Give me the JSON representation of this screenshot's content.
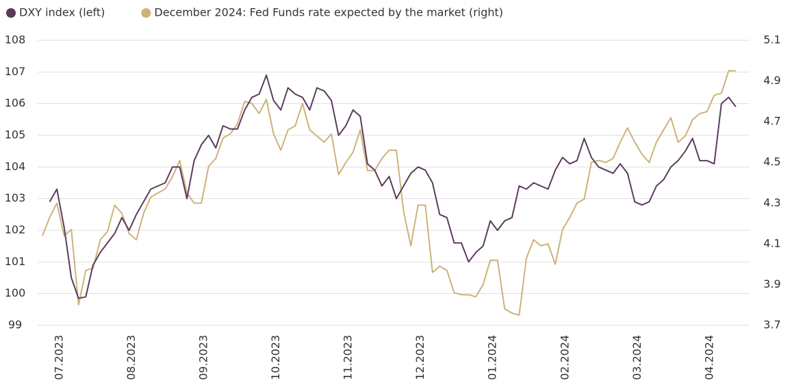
{
  "chart_data": {
    "type": "line",
    "categories": [
      null,
      null,
      "07.2023",
      null,
      null,
      null,
      null,
      null,
      null,
      null,
      null,
      null,
      "08.2023",
      null,
      null,
      null,
      null,
      null,
      null,
      null,
      null,
      null,
      "09.2023",
      null,
      null,
      null,
      null,
      null,
      null,
      null,
      null,
      null,
      "10.2023",
      null,
      null,
      null,
      null,
      null,
      null,
      null,
      null,
      null,
      "11.2023",
      null,
      null,
      null,
      null,
      null,
      null,
      null,
      null,
      null,
      "12.2023",
      null,
      null,
      null,
      null,
      null,
      null,
      null,
      null,
      null,
      "01.2024",
      null,
      null,
      null,
      null,
      null,
      null,
      null,
      null,
      null,
      "02.2024",
      null,
      null,
      null,
      null,
      null,
      null,
      null,
      null,
      null,
      "03.2024",
      null,
      null,
      null,
      null,
      null,
      null,
      null,
      null,
      null,
      "04.2024",
      null,
      null,
      null,
      null
    ],
    "series": [
      {
        "name": "DXY index (left)",
        "color": "#5b3a5e",
        "axis": "y",
        "values": [
          null,
          102.9,
          103.3,
          102.1,
          100.5,
          99.85,
          99.9,
          100.9,
          101.3,
          101.6,
          101.9,
          102.4,
          102.0,
          102.5,
          102.9,
          103.3,
          103.4,
          103.5,
          104.0,
          104.0,
          103.0,
          104.2,
          104.7,
          105.0,
          104.6,
          105.3,
          105.2,
          105.2,
          105.8,
          106.2,
          106.3,
          106.9,
          106.1,
          105.8,
          106.5,
          106.3,
          106.2,
          105.8,
          106.5,
          106.4,
          106.1,
          105.0,
          105.3,
          105.8,
          105.6,
          104.1,
          103.9,
          103.4,
          103.7,
          103.0,
          103.4,
          103.8,
          104.0,
          103.9,
          103.5,
          102.5,
          102.4,
          101.6,
          101.6,
          101.0,
          101.3,
          101.5,
          102.3,
          102.0,
          102.3,
          102.4,
          103.4,
          103.3,
          103.5,
          103.4,
          103.3,
          103.9,
          104.3,
          104.1,
          104.2,
          104.9,
          104.3,
          104.0,
          103.9,
          103.8,
          104.1,
          103.8,
          102.9,
          102.8,
          102.9,
          103.4,
          103.6,
          104.0,
          104.2,
          104.5,
          104.9,
          104.2,
          104.2,
          104.1,
          106.0,
          106.2,
          105.9
        ]
      },
      {
        "name": "December 2024: Fed Funds rate expected by the market (right)",
        "color": "#cdb27a",
        "axis": "y2",
        "values": [
          4.14,
          4.23,
          4.3,
          4.14,
          4.17,
          3.8,
          3.97,
          3.98,
          4.12,
          4.16,
          4.29,
          4.25,
          4.15,
          4.12,
          4.25,
          4.33,
          4.35,
          4.37,
          4.43,
          4.51,
          4.35,
          4.3,
          4.3,
          4.48,
          4.52,
          4.62,
          4.64,
          4.69,
          4.8,
          4.79,
          4.74,
          4.81,
          4.64,
          4.56,
          4.66,
          4.68,
          4.79,
          4.66,
          4.63,
          4.6,
          4.64,
          4.44,
          4.5,
          4.55,
          4.66,
          4.46,
          4.46,
          4.52,
          4.56,
          4.56,
          4.26,
          4.09,
          4.29,
          4.29,
          3.96,
          3.99,
          3.97,
          3.86,
          3.85,
          3.85,
          3.84,
          3.9,
          4.02,
          4.02,
          3.78,
          3.76,
          3.75,
          4.03,
          4.12,
          4.09,
          4.1,
          4.0,
          4.17,
          4.23,
          4.3,
          4.32,
          4.5,
          4.51,
          4.5,
          4.52,
          4.6,
          4.67,
          4.6,
          4.54,
          4.5,
          4.6,
          4.66,
          4.72,
          4.6,
          4.63,
          4.71,
          4.74,
          4.75,
          4.83,
          4.84,
          4.95,
          4.95
        ]
      }
    ],
    "ylim": [
      99,
      108
    ],
    "yticks": [
      99,
      100,
      101,
      102,
      103,
      104,
      105,
      106,
      107,
      108
    ],
    "y2lim": [
      3.7,
      5.1
    ],
    "y2ticks": [
      3.7,
      3.9,
      4.1,
      4.3,
      4.5,
      4.7,
      4.9,
      5.1
    ],
    "grid": true,
    "legend": "top-left"
  }
}
